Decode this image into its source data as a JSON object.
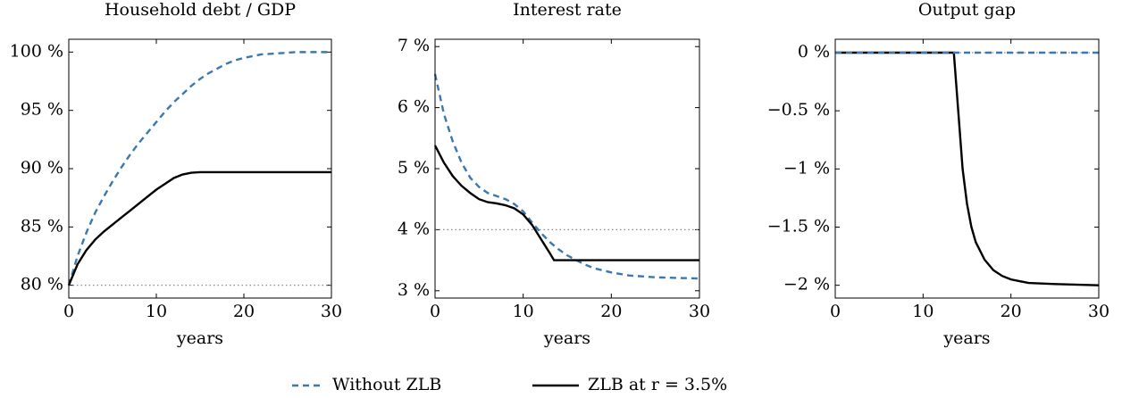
{
  "chart_data": [
    {
      "type": "line",
      "title": "Household debt / GDP",
      "x_label": "years",
      "xlim": [
        0,
        30
      ],
      "xticks": [
        0,
        10,
        20,
        30
      ],
      "ylim": [
        78.9,
        101.1
      ],
      "yticks": [
        {
          "value": 80,
          "label": "80 %"
        },
        {
          "value": 85,
          "label": "85 %"
        },
        {
          "value": 90,
          "label": "90 %"
        },
        {
          "value": 95,
          "label": "95 %"
        },
        {
          "value": 100,
          "label": "100 %"
        }
      ],
      "reference_line": 80,
      "series": [
        {
          "color": "#3a78b0",
          "style": "dashed",
          "x": [
            0,
            1,
            2,
            3,
            4,
            5,
            6,
            7,
            8,
            9,
            10,
            11,
            12,
            13,
            14,
            15,
            16,
            17,
            18,
            19,
            20,
            22,
            24,
            26,
            28,
            30
          ],
          "values": [
            80,
            82.5,
            84.5,
            86.2,
            87.6,
            88.9,
            90.1,
            91.2,
            92.2,
            93.1,
            94,
            94.9,
            95.7,
            96.4,
            97.1,
            97.7,
            98.2,
            98.6,
            99,
            99.3,
            99.5,
            99.8,
            99.9,
            100,
            100,
            100
          ]
        },
        {
          "color": "#000000",
          "style": "solid",
          "x": [
            0,
            1,
            2,
            3,
            4,
            5,
            6,
            7,
            8,
            9,
            10,
            11,
            12,
            13,
            14,
            15,
            20,
            25,
            30
          ],
          "values": [
            80,
            81.8,
            83,
            83.9,
            84.6,
            85.2,
            85.8,
            86.4,
            87,
            87.6,
            88.2,
            88.7,
            89.2,
            89.5,
            89.65,
            89.7,
            89.7,
            89.7,
            89.7
          ]
        }
      ]
    },
    {
      "type": "line",
      "title": "Interest rate",
      "x_label": "years",
      "xlim": [
        0,
        30
      ],
      "xticks": [
        0,
        10,
        20,
        30
      ],
      "ylim": [
        2.88,
        7.12
      ],
      "yticks": [
        {
          "value": 3,
          "label": "3 %"
        },
        {
          "value": 4,
          "label": "4 %"
        },
        {
          "value": 5,
          "label": "5 %"
        },
        {
          "value": 6,
          "label": "6 %"
        },
        {
          "value": 7,
          "label": "7 %"
        }
      ],
      "reference_line": 4,
      "series": [
        {
          "color": "#3a78b0",
          "style": "dashed",
          "x": [
            0,
            1,
            2,
            3,
            4,
            5,
            6,
            7,
            8,
            9,
            10,
            11,
            12,
            13,
            14,
            15,
            16,
            17,
            18,
            20,
            22,
            25,
            30
          ],
          "values": [
            6.55,
            5.9,
            5.45,
            5.1,
            4.85,
            4.7,
            4.6,
            4.55,
            4.5,
            4.42,
            4.3,
            4.12,
            3.95,
            3.8,
            3.68,
            3.58,
            3.5,
            3.43,
            3.37,
            3.3,
            3.25,
            3.22,
            3.2
          ]
        },
        {
          "color": "#000000",
          "style": "solid",
          "x": [
            0,
            1,
            2,
            3,
            4,
            5,
            6,
            7,
            8,
            9,
            10,
            11,
            12,
            13,
            13.5,
            15,
            20,
            30
          ],
          "values": [
            5.38,
            5.1,
            4.88,
            4.72,
            4.6,
            4.5,
            4.45,
            4.43,
            4.4,
            4.35,
            4.25,
            4.08,
            3.85,
            3.62,
            3.5,
            3.5,
            3.5,
            3.5
          ]
        }
      ]
    },
    {
      "type": "line",
      "title": "Output gap",
      "x_label": "years",
      "xlim": [
        0,
        30
      ],
      "xticks": [
        0,
        10,
        20,
        30
      ],
      "ylim": [
        -2.11,
        0.115
      ],
      "yticks": [
        {
          "value": -2,
          "label": "−2 %"
        },
        {
          "value": -1.5,
          "label": "−1.5 %"
        },
        {
          "value": -1,
          "label": "−1 %"
        },
        {
          "value": -0.5,
          "label": "−0.5 %"
        },
        {
          "value": 0,
          "label": "0 %"
        }
      ],
      "reference_line": 0,
      "series": [
        {
          "color": "#000000",
          "style": "solid",
          "x": [
            0,
            13.5,
            14,
            14.5,
            15,
            15.5,
            16,
            17,
            18,
            19,
            20,
            22,
            25,
            30
          ],
          "values": [
            0,
            0,
            -0.5,
            -1.0,
            -1.3,
            -1.5,
            -1.63,
            -1.78,
            -1.87,
            -1.92,
            -1.95,
            -1.98,
            -1.99,
            -2.0
          ]
        },
        {
          "color": "#3a78b0",
          "style": "dashed",
          "x": [
            0,
            30
          ],
          "values": [
            0,
            0
          ]
        }
      ]
    }
  ],
  "legend": {
    "entries": [
      {
        "name": "Without ZLB",
        "color": "#3a78b0",
        "style": "dashed"
      },
      {
        "name": "ZLB at r = 3.5%",
        "color": "#000000",
        "style": "solid"
      }
    ]
  }
}
